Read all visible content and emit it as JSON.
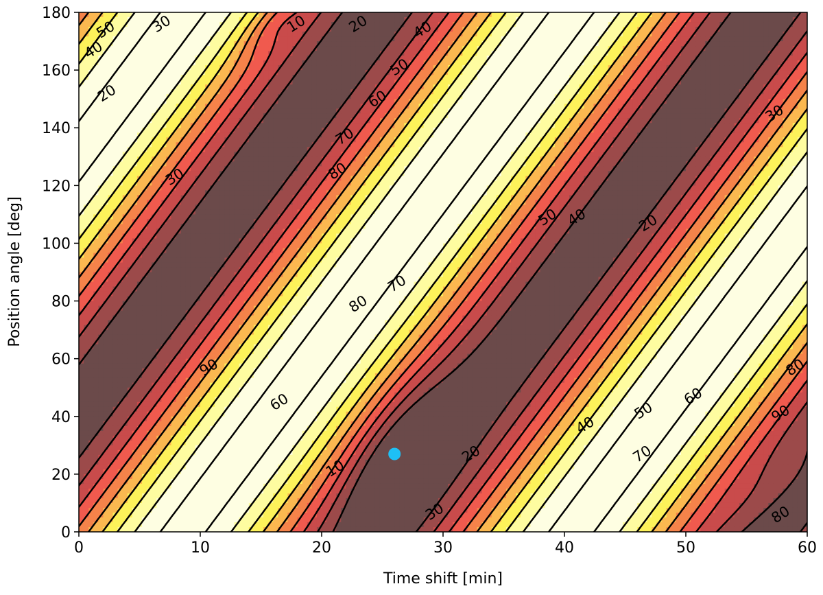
{
  "chart_data": {
    "type": "contour",
    "xlabel": "Time shift [min]",
    "ylabel": "Position angle [deg]",
    "xlim": [
      0,
      60
    ],
    "ylim": [
      0,
      180
    ],
    "xticks": [
      0,
      10,
      20,
      30,
      40,
      50,
      60
    ],
    "yticks": [
      0,
      20,
      40,
      60,
      80,
      100,
      120,
      140,
      160,
      180
    ],
    "grid": false,
    "legend": "none",
    "contour_levels": [
      10,
      20,
      30,
      40,
      50,
      60,
      70,
      80,
      90
    ],
    "fill_colors": [
      "#6b4a4a",
      "#9c4a4a",
      "#c94b4b",
      "#f05a4e",
      "#f5834a",
      "#fbb850",
      "#fdf25a",
      "#fefca0",
      "#fefee2"
    ],
    "line_color": "#000000",
    "contour_labels": [
      {
        "text": "50",
        "x": 2.2,
        "y": 174
      },
      {
        "text": "40",
        "x": 1.2,
        "y": 167
      },
      {
        "text": "30",
        "x": 6.8,
        "y": 176
      },
      {
        "text": "10",
        "x": 17.9,
        "y": 176
      },
      {
        "text": "20",
        "x": 23,
        "y": 176
      },
      {
        "text": "40",
        "x": 28.3,
        "y": 174
      },
      {
        "text": "20",
        "x": 2.3,
        "y": 152
      },
      {
        "text": "50",
        "x": 26.4,
        "y": 161
      },
      {
        "text": "60",
        "x": 24.6,
        "y": 150
      },
      {
        "text": "70",
        "x": 21.9,
        "y": 137
      },
      {
        "text": "80",
        "x": 21.3,
        "y": 125
      },
      {
        "text": "30",
        "x": 7.9,
        "y": 123
      },
      {
        "text": "30",
        "x": 57.3,
        "y": 145
      },
      {
        "text": "50",
        "x": 38.6,
        "y": 109
      },
      {
        "text": "40",
        "x": 41,
        "y": 109
      },
      {
        "text": "20",
        "x": 46.9,
        "y": 107
      },
      {
        "text": "70",
        "x": 26.2,
        "y": 86
      },
      {
        "text": "80",
        "x": 23,
        "y": 79
      },
      {
        "text": "90",
        "x": 10.7,
        "y": 57
      },
      {
        "text": "60",
        "x": 16.5,
        "y": 45
      },
      {
        "text": "80",
        "x": 59,
        "y": 57
      },
      {
        "text": "90",
        "x": 57.8,
        "y": 41
      },
      {
        "text": "50",
        "x": 46.5,
        "y": 42
      },
      {
        "text": "60",
        "x": 50.6,
        "y": 47
      },
      {
        "text": "40",
        "x": 41.7,
        "y": 37
      },
      {
        "text": "20",
        "x": 32.3,
        "y": 27
      },
      {
        "text": "10",
        "x": 21.1,
        "y": 22
      },
      {
        "text": "70",
        "x": 46.4,
        "y": 27
      },
      {
        "text": "30",
        "x": 29.3,
        "y": 7
      },
      {
        "text": "80",
        "x": 57.8,
        "y": 6
      }
    ],
    "marker": {
      "x": 26,
      "y": 27,
      "color": "#1ec0f5"
    }
  }
}
